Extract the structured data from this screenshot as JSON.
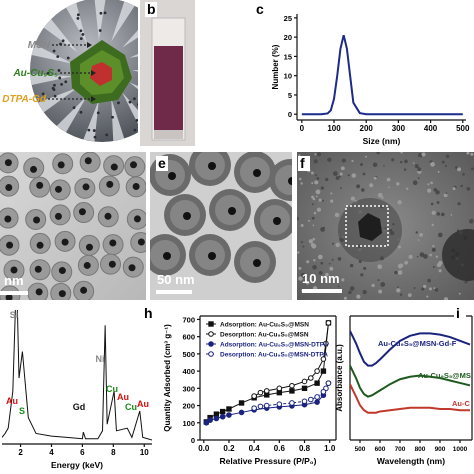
{
  "figure": {
    "panels": [
      "b",
      "c",
      "e",
      "f",
      "h",
      "i"
    ],
    "schematic": [
      "MSN",
      "Au-Cu₉S₅",
      "DTPA-Gd"
    ],
    "scale_bars": [
      "nm",
      "50 nm",
      "10 nm"
    ]
  },
  "chart_data": [
    {
      "type": "line",
      "xlabel": "Size (nm)",
      "ylabel": "Number (%)",
      "x": [
        0,
        60,
        80,
        90,
        100,
        110,
        120,
        130,
        140,
        150,
        160,
        180,
        200,
        500
      ],
      "series": [
        {
          "color": "#1c2a8a",
          "values": [
            0,
            0,
            0.2,
            1,
            4,
            10,
            17,
            20.5,
            17,
            10,
            3,
            0.3,
            0,
            0
          ]
        }
      ],
      "xlim": [
        -15,
        510
      ],
      "xticks": [
        0,
        100,
        200,
        300,
        400,
        500
      ],
      "ylim": [
        -1.5,
        26
      ],
      "yticks": [
        0,
        5,
        10,
        15,
        20,
        25
      ]
    },
    {
      "type": "line",
      "xlabel": "Energy (keV)",
      "x": [
        0.8,
        1.0,
        1.2,
        1.5,
        1.74,
        1.9,
        2.12,
        2.31,
        2.5,
        3,
        4,
        5,
        6,
        6.06,
        6.2,
        7,
        7.3,
        7.47,
        7.6,
        8.05,
        8.2,
        8.9,
        9.2,
        9.71,
        9.9,
        10.5
      ],
      "series": [
        {
          "color": "#111111",
          "values": [
            5,
            8,
            12,
            40,
            130,
            50,
            70,
            45,
            20,
            8,
            6,
            5,
            4,
            9,
            4,
            4,
            10,
            90,
            15,
            40,
            10,
            12,
            5,
            25,
            5,
            3
          ]
        }
      ],
      "xlim": [
        0.8,
        10.5
      ],
      "xticks": [
        2,
        4,
        6,
        8,
        10
      ],
      "ylim": [
        0,
        100
      ],
      "annotations": [
        {
          "text": "Si",
          "color": "#888888"
        },
        {
          "text": "Au",
          "color": "#d01010"
        },
        {
          "text": "S",
          "color": "#1a8a1a"
        },
        {
          "text": "Gd",
          "color": "#111111"
        },
        {
          "text": "Ni",
          "color": "#888888"
        },
        {
          "text": "Cu",
          "color": "#1a8a1a"
        },
        {
          "text": "Au",
          "color": "#d01010"
        },
        {
          "text": "Cu",
          "color": "#1a8a1a"
        },
        {
          "text": "Au",
          "color": "#d01010"
        }
      ]
    },
    {
      "type": "scatterline",
      "xlabel": "Relative Pressure (P/P₀)",
      "ylabel": "Quantity Adsorbed (cm³ g⁻¹)",
      "series": [
        {
          "name": "Adsorption: Au-Cu₉S₅@MSN",
          "color": "#111111",
          "marker": "square",
          "filled": true,
          "dash": false,
          "x": [
            0.02,
            0.05,
            0.1,
            0.15,
            0.2,
            0.3,
            0.4,
            0.5,
            0.6,
            0.7,
            0.8,
            0.9,
            0.95,
            0.99
          ],
          "values": [
            105,
            130,
            150,
            165,
            180,
            215,
            245,
            262,
            275,
            285,
            300,
            330,
            400,
            680
          ]
        },
        {
          "name": "Desorption: Au-Cu₉S₅@MSN",
          "color": "#111111",
          "marker": "circle",
          "filled": false,
          "dash": false,
          "x": [
            0.99,
            0.97,
            0.95,
            0.9,
            0.85,
            0.8,
            0.7,
            0.6,
            0.5,
            0.45,
            0.4
          ],
          "values": [
            680,
            560,
            470,
            400,
            360,
            340,
            315,
            300,
            285,
            275,
            255
          ]
        },
        {
          "name": "Adsorption: Au-Cu₉S₅@MSN-DTPA",
          "color": "#1a237e",
          "marker": "circle",
          "filled": true,
          "dash": false,
          "x": [
            0.02,
            0.05,
            0.1,
            0.15,
            0.2,
            0.3,
            0.4,
            0.5,
            0.6,
            0.7,
            0.8,
            0.9,
            0.95,
            0.99
          ],
          "values": [
            100,
            115,
            125,
            135,
            145,
            160,
            175,
            185,
            192,
            198,
            205,
            220,
            260,
            330
          ]
        },
        {
          "name": "Desorption: Au-Cu₉S₅@MSN-DTPA",
          "color": "#1a237e",
          "marker": "circle",
          "filled": false,
          "dash": true,
          "x": [
            0.99,
            0.97,
            0.95,
            0.9,
            0.85,
            0.8,
            0.7,
            0.6,
            0.5,
            0.45,
            0.4
          ],
          "values": [
            330,
            300,
            280,
            250,
            235,
            225,
            215,
            208,
            200,
            195,
            185
          ]
        }
      ],
      "xlim": [
        -0.03,
        1.05
      ],
      "xticks": [
        {
          "value": 0,
          "label": "0.0"
        },
        {
          "value": 0.2,
          "label": "0.2"
        },
        {
          "value": 0.4,
          "label": "0.4"
        },
        {
          "value": 0.6,
          "label": "0.6"
        },
        {
          "value": 0.8,
          "label": "0.8"
        },
        {
          "value": 1,
          "label": "1.0"
        }
      ],
      "ylim": [
        0,
        720
      ],
      "yticks": [
        0,
        100,
        200,
        300,
        400,
        500,
        600,
        700
      ]
    },
    {
      "type": "line",
      "xlabel": "Wavelength (nm)",
      "ylabel": "Absorbance (a.u.)",
      "x": [
        450,
        480,
        500,
        520,
        540,
        560,
        580,
        600,
        650,
        700,
        750,
        800,
        850,
        900,
        950,
        1000,
        1050
      ],
      "series": [
        {
          "name": "Au-Cu₉S₅@MSN-Gd-F",
          "color": "#1a237e",
          "values": [
            0.88,
            0.78,
            0.7,
            0.63,
            0.6,
            0.6,
            0.62,
            0.65,
            0.73,
            0.8,
            0.84,
            0.86,
            0.86,
            0.85,
            0.83,
            0.8,
            0.77
          ]
        },
        {
          "name": "Au-Cu₉S₅@MS",
          "color": "#1f5a1f",
          "values": [
            0.6,
            0.5,
            0.42,
            0.37,
            0.35,
            0.36,
            0.38,
            0.4,
            0.45,
            0.49,
            0.51,
            0.52,
            0.51,
            0.5,
            0.48,
            0.46,
            0.44
          ]
        },
        {
          "name": "Au-C",
          "color": "#c0392b",
          "values": [
            0.45,
            0.35,
            0.28,
            0.24,
            0.22,
            0.22,
            0.22,
            0.23,
            0.24,
            0.25,
            0.26,
            0.26,
            0.26,
            0.25,
            0.25,
            0.24,
            0.24
          ]
        }
      ],
      "xlim": [
        450,
        1060
      ],
      "xticks": [
        500,
        600,
        700,
        800,
        900,
        1000
      ],
      "ylim": [
        0,
        1
      ]
    }
  ]
}
